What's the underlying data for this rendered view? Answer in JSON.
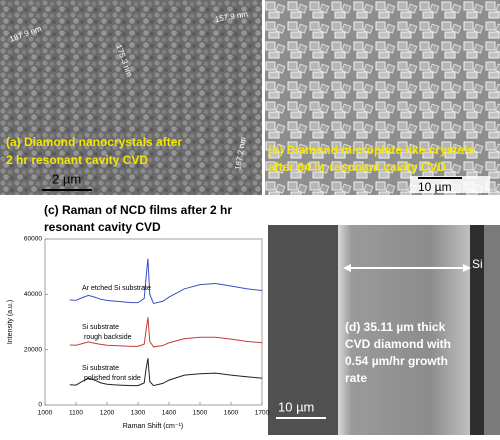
{
  "panels": {
    "a": {
      "measurements": [
        "187.9 nm",
        "157.9 nm",
        "175.3 nm",
        "187.2 nm"
      ],
      "label": [
        "(a) Diamond nanocrystals after",
        "2 hr resonant cavity CVD"
      ],
      "scale": "2 µm"
    },
    "b": {
      "label": [
        "(b) Diamond microplate like crystals",
        "after 64 hr resonant cavity CVD"
      ],
      "scale": "10 µm"
    },
    "d": {
      "layer": "Si",
      "label": [
        "(d) 35.11 µm thick",
        "CVD diamond with",
        "0.54 µm/hr growth",
        "rate"
      ],
      "scale": "10 µm"
    }
  },
  "chart_data": {
    "type": "line",
    "title": [
      "(c) Raman of NCD films after 2 hr",
      "resonant cavity CVD"
    ],
    "x_label": "Raman Shift (cm⁻¹)",
    "y_label": "Intensity (a.u.)",
    "x": [
      1080,
      1100,
      1120,
      1140,
      1160,
      1180,
      1200,
      1220,
      1240,
      1260,
      1280,
      1300,
      1320,
      1326,
      1332,
      1338,
      1350,
      1380,
      1400,
      1450,
      1500,
      1550,
      1600,
      1650,
      1700
    ],
    "series": [
      {
        "name": "Ar etched Si substrate",
        "color": "#3a4fc8",
        "values": [
          38000,
          37800,
          38800,
          39600,
          39000,
          38200,
          37800,
          37600,
          37400,
          37200,
          37000,
          37000,
          38500,
          46000,
          52900,
          40000,
          36700,
          37500,
          39000,
          42000,
          43500,
          43900,
          43000,
          42000,
          41400
        ]
      },
      {
        "name": "Si substrate rough backside",
        "color": "#c83a3a",
        "values": [
          21700,
          21600,
          22200,
          22800,
          22300,
          21900,
          21600,
          21500,
          21400,
          21300,
          21200,
          21200,
          22000,
          27000,
          31700,
          23000,
          21000,
          21500,
          22500,
          24000,
          24500,
          24500,
          23800,
          23000,
          22500
        ]
      },
      {
        "name": "Si substrate polished front side",
        "color": "#222222",
        "values": [
          7300,
          7200,
          8500,
          9700,
          9000,
          8000,
          7500,
          7300,
          7200,
          7100,
          7000,
          7000,
          8000,
          13000,
          16900,
          8500,
          7000,
          7800,
          9000,
          10800,
          11300,
          11500,
          10800,
          10200,
          9700
        ]
      }
    ],
    "xlim": [
      1000,
      1700
    ],
    "xticks": [
      1000,
      1100,
      1200,
      1300,
      1400,
      1500,
      1600,
      1700
    ],
    "ylim": [
      0,
      60000
    ],
    "yticks": [
      0,
      20000,
      40000,
      60000
    ],
    "annotations": [
      "Ar etched Si substrate",
      "Si substrate",
      "rough backside",
      "Si substrate",
      "polished front side"
    ]
  }
}
